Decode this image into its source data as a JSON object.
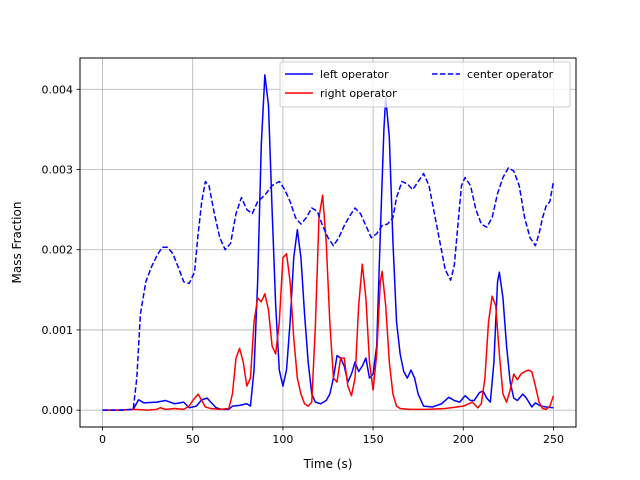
{
  "chart_data": {
    "type": "line",
    "title": "",
    "xlabel": "Time (s)",
    "ylabel": "Mass Fraction",
    "xlim": [
      -12.5,
      262.5
    ],
    "ylim": [
      -0.00021,
      0.00439
    ],
    "xticks": [
      0,
      50,
      100,
      150,
      200,
      250
    ],
    "yticks": [
      0.0,
      0.001,
      0.002,
      0.003,
      0.004
    ],
    "xtick_labels": [
      "0",
      "50",
      "100",
      "150",
      "200",
      "250"
    ],
    "ytick_labels": [
      "0.000",
      "0.001",
      "0.002",
      "0.003",
      "0.004"
    ],
    "grid": true,
    "legend": {
      "placement": "top-right",
      "columns": 2
    },
    "series": [
      {
        "name": "left operator",
        "color": "#0000ff",
        "style": "solid",
        "points": [
          [
            0,
            0
          ],
          [
            10,
            0
          ],
          [
            17,
            1e-05
          ],
          [
            20,
            0.00013
          ],
          [
            23,
            9e-05
          ],
          [
            30,
            0.0001
          ],
          [
            35,
            0.00012
          ],
          [
            40,
            8e-05
          ],
          [
            45,
            0.0001
          ],
          [
            48,
            3e-05
          ],
          [
            52,
            5e-05
          ],
          [
            55,
            0.00013
          ],
          [
            58,
            0.00015
          ],
          [
            60,
            0.0001
          ],
          [
            63,
            3e-05
          ],
          [
            66,
            1e-05
          ],
          [
            70,
            1e-05
          ],
          [
            72,
            5e-05
          ],
          [
            76,
            6e-05
          ],
          [
            80,
            8e-05
          ],
          [
            82,
            5e-05
          ],
          [
            84,
            0.0005
          ],
          [
            86,
            0.0016
          ],
          [
            88,
            0.0033
          ],
          [
            90,
            0.00418
          ],
          [
            92,
            0.0038
          ],
          [
            94,
            0.0025
          ],
          [
            96,
            0.0013
          ],
          [
            98,
            0.0005
          ],
          [
            100,
            0.0003
          ],
          [
            102,
            0.0005
          ],
          [
            104,
            0.0011
          ],
          [
            106,
            0.0019
          ],
          [
            108,
            0.00225
          ],
          [
            110,
            0.0019
          ],
          [
            112,
            0.0012
          ],
          [
            114,
            0.0006
          ],
          [
            116,
            0.0002
          ],
          [
            118,
            0.0001
          ],
          [
            121,
            8e-05
          ],
          [
            124,
            0.00012
          ],
          [
            126,
            0.0002
          ],
          [
            128,
            0.0004
          ],
          [
            130,
            0.00068
          ],
          [
            132,
            0.00065
          ],
          [
            134,
            0.00055
          ],
          [
            136,
            0.00035
          ],
          [
            138,
            0.00045
          ],
          [
            140,
            0.0006
          ],
          [
            142,
            0.00048
          ],
          [
            144,
            0.00055
          ],
          [
            146,
            0.00065
          ],
          [
            148,
            0.0004
          ],
          [
            150,
            0.00045
          ],
          [
            152,
            0.0008
          ],
          [
            154,
            0.0022
          ],
          [
            156,
            0.0035
          ],
          [
            157,
            0.0039
          ],
          [
            159,
            0.0034
          ],
          [
            161,
            0.0021
          ],
          [
            163,
            0.0011
          ],
          [
            165,
            0.0007
          ],
          [
            167,
            0.00048
          ],
          [
            169,
            0.0004
          ],
          [
            171,
            0.0005
          ],
          [
            173,
            0.0004
          ],
          [
            175,
            0.0002
          ],
          [
            178,
            5e-05
          ],
          [
            183,
            4e-05
          ],
          [
            188,
            8e-05
          ],
          [
            192,
            0.00016
          ],
          [
            195,
            0.00012
          ],
          [
            198,
            0.0001
          ],
          [
            201,
            0.00018
          ],
          [
            204,
            0.00012
          ],
          [
            206,
            0.00012
          ],
          [
            209,
            0.00022
          ],
          [
            211,
            0.00024
          ],
          [
            213,
            0.00015
          ],
          [
            215,
            0.0001
          ],
          [
            217,
            0.0006
          ],
          [
            219,
            0.0016
          ],
          [
            220,
            0.00172
          ],
          [
            222,
            0.0014
          ],
          [
            224,
            0.0008
          ],
          [
            226,
            0.00035
          ],
          [
            228,
            0.00015
          ],
          [
            230,
            0.00012
          ],
          [
            233,
            0.0002
          ],
          [
            235,
            0.00015
          ],
          [
            238,
            4e-05
          ],
          [
            240,
            9e-05
          ],
          [
            243,
            5e-05
          ],
          [
            246,
            4e-05
          ],
          [
            250,
            3e-05
          ]
        ]
      },
      {
        "name": "right operator",
        "color": "#ff0000",
        "style": "solid",
        "points": [
          [
            0,
            0
          ],
          [
            10,
            0
          ],
          [
            18,
            1e-05
          ],
          [
            25,
            0
          ],
          [
            30,
            1e-05
          ],
          [
            32,
            3e-05
          ],
          [
            35,
            1e-05
          ],
          [
            40,
            2e-05
          ],
          [
            45,
            1e-05
          ],
          [
            48,
            5e-05
          ],
          [
            50,
            0.00012
          ],
          [
            53,
            0.0002
          ],
          [
            55,
            0.00012
          ],
          [
            57,
            4e-05
          ],
          [
            60,
            2e-05
          ],
          [
            65,
            1e-05
          ],
          [
            70,
            2e-05
          ],
          [
            72,
            0.0002
          ],
          [
            74,
            0.00065
          ],
          [
            76,
            0.00077
          ],
          [
            78,
            0.0006
          ],
          [
            80,
            0.0003
          ],
          [
            82,
            0.0004
          ],
          [
            84,
            0.0011
          ],
          [
            86,
            0.0014
          ],
          [
            88,
            0.00135
          ],
          [
            90,
            0.00145
          ],
          [
            92,
            0.00125
          ],
          [
            94,
            0.0008
          ],
          [
            96,
            0.0007
          ],
          [
            98,
            0.0011
          ],
          [
            100,
            0.0019
          ],
          [
            102,
            0.00195
          ],
          [
            104,
            0.0016
          ],
          [
            106,
            0.0009
          ],
          [
            108,
            0.0004
          ],
          [
            110,
            0.0002
          ],
          [
            112,
            8e-05
          ],
          [
            114,
            5e-05
          ],
          [
            116,
            0.0001
          ],
          [
            118,
            0.00105
          ],
          [
            120,
            0.0024
          ],
          [
            122,
            0.00268
          ],
          [
            124,
            0.0021
          ],
          [
            126,
            0.0011
          ],
          [
            128,
            0.0004
          ],
          [
            130,
            0.00035
          ],
          [
            132,
            0.00065
          ],
          [
            134,
            0.00065
          ],
          [
            136,
            0.0003
          ],
          [
            138,
            0.00018
          ],
          [
            140,
            0.0004
          ],
          [
            142,
            0.0013
          ],
          [
            144,
            0.00182
          ],
          [
            146,
            0.0014
          ],
          [
            148,
            0.0006
          ],
          [
            150,
            0.00025
          ],
          [
            152,
            0.0007
          ],
          [
            154,
            0.0016
          ],
          [
            155,
            0.00173
          ],
          [
            157,
            0.0013
          ],
          [
            159,
            0.0006
          ],
          [
            161,
            0.0002
          ],
          [
            163,
            5e-05
          ],
          [
            165,
            2e-05
          ],
          [
            170,
            1e-05
          ],
          [
            180,
            1e-05
          ],
          [
            190,
            2e-05
          ],
          [
            200,
            5e-05
          ],
          [
            205,
            0.0001
          ],
          [
            208,
            3e-05
          ],
          [
            210,
            8e-05
          ],
          [
            212,
            0.0004
          ],
          [
            214,
            0.0011
          ],
          [
            216,
            0.00142
          ],
          [
            218,
            0.0013
          ],
          [
            220,
            0.0007
          ],
          [
            222,
            0.0002
          ],
          [
            224,
            0.0001
          ],
          [
            226,
            0.00025
          ],
          [
            228,
            0.00045
          ],
          [
            230,
            0.00038
          ],
          [
            232,
            0.00045
          ],
          [
            234,
            0.00048
          ],
          [
            236,
            0.0005
          ],
          [
            238,
            0.00048
          ],
          [
            240,
            0.0003
          ],
          [
            242,
            0.0001
          ],
          [
            244,
            2e-05
          ],
          [
            246,
            1e-05
          ],
          [
            248,
            5e-05
          ],
          [
            250,
            0.00018
          ]
        ]
      },
      {
        "name": "center operator",
        "color": "#0000ff",
        "style": "dashed",
        "points": [
          [
            0,
            0
          ],
          [
            10,
            0
          ],
          [
            17,
            1e-05
          ],
          [
            19,
            0.0004
          ],
          [
            21,
            0.0012
          ],
          [
            24,
            0.0016
          ],
          [
            27,
            0.00178
          ],
          [
            30,
            0.00192
          ],
          [
            33,
            0.00203
          ],
          [
            36,
            0.00203
          ],
          [
            39,
            0.00195
          ],
          [
            42,
            0.00178
          ],
          [
            45,
            0.0016
          ],
          [
            48,
            0.00158
          ],
          [
            51,
            0.00172
          ],
          [
            53,
            0.0022
          ],
          [
            55,
            0.0026
          ],
          [
            57,
            0.00285
          ],
          [
            59,
            0.0028
          ],
          [
            62,
            0.00245
          ],
          [
            65,
            0.00215
          ],
          [
            68,
            0.002
          ],
          [
            71,
            0.00208
          ],
          [
            74,
            0.00245
          ],
          [
            77,
            0.00265
          ],
          [
            80,
            0.0025
          ],
          [
            83,
            0.00245
          ],
          [
            86,
            0.0026
          ],
          [
            90,
            0.00268
          ],
          [
            94,
            0.0028
          ],
          [
            98,
            0.00285
          ],
          [
            101,
            0.00275
          ],
          [
            104,
            0.0026
          ],
          [
            107,
            0.0024
          ],
          [
            110,
            0.00232
          ],
          [
            113,
            0.0024
          ],
          [
            116,
            0.00252
          ],
          [
            119,
            0.00248
          ],
          [
            122,
            0.0023
          ],
          [
            125,
            0.00215
          ],
          [
            128,
            0.00205
          ],
          [
            131,
            0.00215
          ],
          [
            134,
            0.0023
          ],
          [
            137,
            0.00242
          ],
          [
            140,
            0.00252
          ],
          [
            143,
            0.00245
          ],
          [
            146,
            0.0023
          ],
          [
            149,
            0.00215
          ],
          [
            152,
            0.0022
          ],
          [
            155,
            0.0023
          ],
          [
            158,
            0.00232
          ],
          [
            161,
            0.0024
          ],
          [
            163,
            0.00265
          ],
          [
            166,
            0.00285
          ],
          [
            169,
            0.00282
          ],
          [
            172,
            0.00275
          ],
          [
            175,
            0.00285
          ],
          [
            178,
            0.00295
          ],
          [
            181,
            0.0028
          ],
          [
            184,
            0.00245
          ],
          [
            187,
            0.0021
          ],
          [
            190,
            0.00175
          ],
          [
            193,
            0.00162
          ],
          [
            195,
            0.0018
          ],
          [
            197,
            0.0023
          ],
          [
            199,
            0.0028
          ],
          [
            201,
            0.0029
          ],
          [
            204,
            0.0028
          ],
          [
            207,
            0.0025
          ],
          [
            210,
            0.00232
          ],
          [
            213,
            0.00228
          ],
          [
            216,
            0.0024
          ],
          [
            219,
            0.0027
          ],
          [
            222,
            0.0029
          ],
          [
            225,
            0.00302
          ],
          [
            228,
            0.00298
          ],
          [
            231,
            0.0028
          ],
          [
            234,
            0.0024
          ],
          [
            237,
            0.00215
          ],
          [
            240,
            0.00205
          ],
          [
            242,
            0.0022
          ],
          [
            244,
            0.0024
          ],
          [
            246,
            0.00255
          ],
          [
            248,
            0.0026
          ],
          [
            250,
            0.00285
          ]
        ]
      }
    ]
  }
}
